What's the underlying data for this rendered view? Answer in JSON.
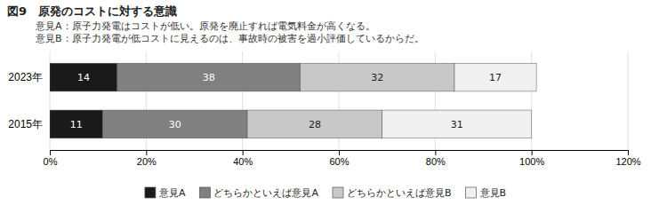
{
  "chart_data": {
    "type": "bar",
    "orientation": "horizontal",
    "stacked": true,
    "title": "図9　原発のコストに対する意識",
    "subtitle": [
      "意見A：原子力発電はコストが低い。原発を廃止すれば電気料金が高くなる。",
      "意見B：原子力発電が低コストに見えるのは、事故時の被害を過小評価しているからだ。"
    ],
    "categories": [
      "2023年",
      "2015年"
    ],
    "series": [
      {
        "name": "意見A",
        "color": "#1a1a1a",
        "values": [
          14,
          11
        ]
      },
      {
        "name": "どちらかといえば意見A",
        "color": "#808080",
        "values": [
          38,
          30
        ]
      },
      {
        "name": "どちらかといえば意見B",
        "color": "#c8c8c8",
        "values": [
          32,
          28
        ]
      },
      {
        "name": "意見B",
        "color": "#f0f0f0",
        "values": [
          17,
          31
        ]
      }
    ],
    "data_labels": true,
    "xlim": [
      0,
      120
    ],
    "xticks": [
      {
        "value": 0,
        "label": "0%"
      },
      {
        "value": 20,
        "label": "20%"
      },
      {
        "value": 40,
        "label": "40%"
      },
      {
        "value": 60,
        "label": "60%"
      },
      {
        "value": 80,
        "label": "80%"
      },
      {
        "value": 100,
        "label": "100%"
      },
      {
        "value": 120,
        "label": "120%"
      }
    ],
    "grid": true,
    "legend": "bottom"
  }
}
